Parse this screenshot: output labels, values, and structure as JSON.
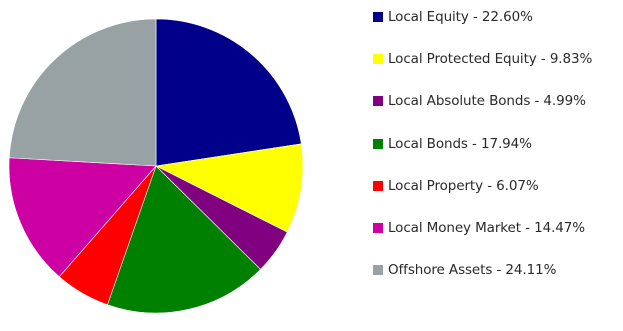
{
  "chart_data": {
    "type": "pie",
    "title": "",
    "legend_position": "right",
    "series": [
      {
        "categories": [
          "Local Equity",
          "Local Protected Equity",
          "Local Absolute Bonds",
          "Local Bonds",
          "Local Property",
          "Local Money Market",
          "Offshore Assets"
        ],
        "values": [
          22.6,
          9.83,
          4.99,
          17.94,
          6.07,
          14.47,
          24.11
        ],
        "colors": [
          "#00008B",
          "#FFFF00",
          "#800080",
          "#008000",
          "#FF0000",
          "#CC00A3",
          "#98A2A4"
        ]
      }
    ],
    "legend_labels": [
      "Local Equity -  22.60%",
      "Local Protected Equity - 9.83%",
      "Local Absolute Bonds -  4.99%",
      "Local Bonds -  17.94%",
      "Local Property - 6.07%",
      "Local Money Market -  14.47%",
      "Offshore Assets -  24.11%"
    ]
  }
}
